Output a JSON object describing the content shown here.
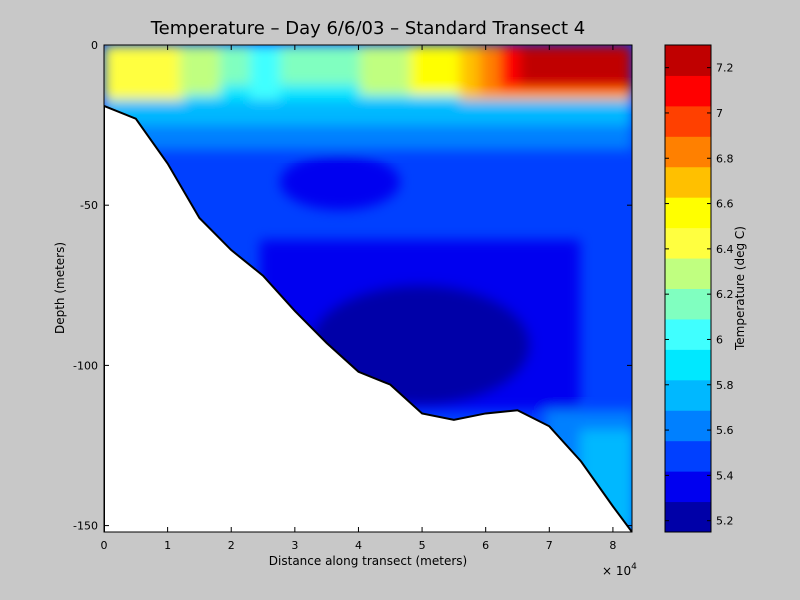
{
  "chart_data": {
    "type": "contour",
    "title": "Temperature – Day 6/6/03 – Standard Transect 4",
    "xlabel": "Distance along transect (meters)",
    "ylabel": "Depth (meters)",
    "x_exponent_label": "× 10",
    "x_exponent_power": "4",
    "xlim": [
      0,
      8.3
    ],
    "ylim": [
      -152,
      0
    ],
    "x_ticks": [
      0,
      1,
      2,
      3,
      4,
      5,
      6,
      7,
      8
    ],
    "x_tick_labels": [
      "0",
      "1",
      "2",
      "3",
      "4",
      "5",
      "6",
      "7",
      "8"
    ],
    "y_ticks": [
      0,
      -50,
      -100,
      -150
    ],
    "y_tick_labels": [
      "0",
      "-50",
      "-100",
      "-150"
    ],
    "bottom_profile": {
      "x": [
        0,
        0.5,
        1,
        1.5,
        2,
        2.5,
        3,
        3.5,
        4,
        4.5,
        5,
        5.5,
        6,
        6.5,
        7,
        7.5,
        8,
        8.3
      ],
      "depth": [
        -19,
        -23,
        -37,
        -54,
        -64,
        -72,
        -83,
        -93,
        -102,
        -106,
        -115,
        -117,
        -115,
        -114,
        -119,
        -130,
        -144,
        -152
      ]
    },
    "colorbar": {
      "label": "Temperature (deg C)",
      "levels": [
        5.15,
        5.3,
        5.45,
        5.6,
        5.75,
        5.9,
        6.05,
        6.2,
        6.35,
        6.5,
        6.65,
        6.8,
        6.95,
        7.1,
        7.3
      ],
      "colors": [
        "#0000a8",
        "#0000f0",
        "#0040ff",
        "#0080ff",
        "#00b8ff",
        "#00e8ff",
        "#40ffff",
        "#80ffc0",
        "#c0ff80",
        "#ffff40",
        "#ffff00",
        "#ffc000",
        "#ff8000",
        "#ff4000",
        "#ff0000",
        "#c00000"
      ],
      "ticks": [
        5.2,
        5.4,
        5.6,
        5.8,
        6,
        6.2,
        6.4,
        6.6,
        6.8,
        7,
        7.2
      ],
      "tick_labels": [
        "5.2",
        "5.4",
        "5.6",
        "5.8",
        "6",
        "6.2",
        "6.4",
        "6.6",
        "6.8",
        "7",
        "7.2"
      ],
      "range": [
        5.15,
        7.3
      ]
    }
  }
}
